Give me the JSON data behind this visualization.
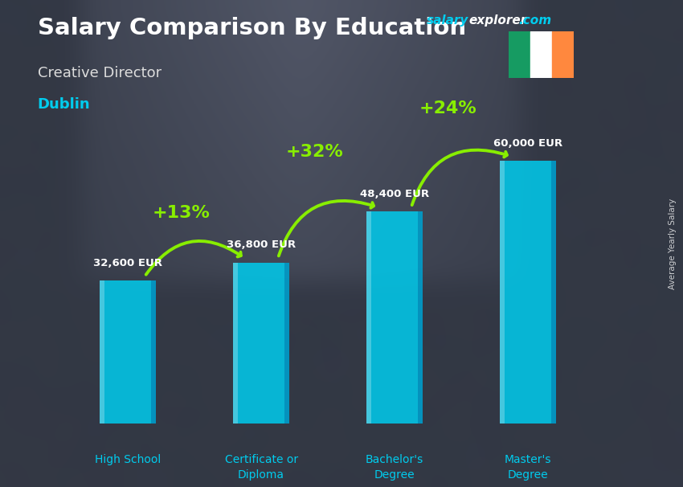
{
  "title": "Salary Comparison By Education",
  "subtitle": "Creative Director",
  "city": "Dublin",
  "ylabel": "Average Yearly Salary",
  "categories": [
    "High School",
    "Certificate or\nDiploma",
    "Bachelor's\nDegree",
    "Master's\nDegree"
  ],
  "values": [
    32600,
    36800,
    48400,
    60000
  ],
  "labels": [
    "32,600 EUR",
    "36,800 EUR",
    "48,400 EUR",
    "60,000 EUR"
  ],
  "pct_labels": [
    "+13%",
    "+32%",
    "+24%"
  ],
  "bar_color": "#00ccee",
  "bar_alpha": 0.85,
  "bg_color": "#3a4050",
  "title_color": "#ffffff",
  "subtitle_color": "#dddddd",
  "city_color": "#00ccee",
  "label_color": "#ffffff",
  "xlabel_color": "#00ccee",
  "pct_color": "#88ee00",
  "arrow_color": "#88ee00",
  "salary_label_color": "#ffffff",
  "site_salary_color": "#00ccee",
  "site_explorer_color": "#ffffff",
  "figsize": [
    8.5,
    6.06
  ],
  "dpi": 100,
  "ylim": [
    0,
    80000
  ],
  "bar_positions": [
    0,
    1,
    2,
    3
  ],
  "bar_width": 0.42,
  "flag_green": "#169B62",
  "flag_white": "#FFFFFF",
  "flag_orange": "#FF883E"
}
